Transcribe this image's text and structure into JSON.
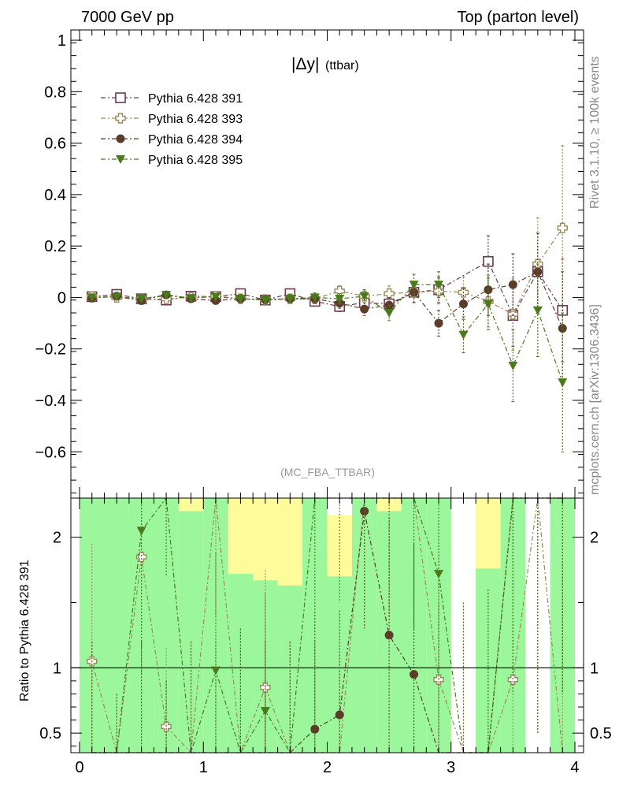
{
  "header": {
    "left": "7000 GeV pp",
    "right": "Top (parton level)"
  },
  "plot_title_main": "|Δy|",
  "plot_title_sub": "(ttbar)",
  "analysis_tag": "(MC_FBA_TTBAR)",
  "side_text_top": "Rivet 3.1.10, ≥ 100k events",
  "side_text_bottom": "mcplots.cern.ch [arXiv:1306.3436]",
  "ratio_ylabel": "Ratio to Pythia 6.428 391",
  "colors": {
    "s391": "#6b3a52",
    "s393": "#9a8a5a",
    "s394": "#5c3d2a",
    "s395": "#4a7a1a",
    "band_green": "#9cf79c",
    "band_yellow": "#fdfb9a"
  },
  "chart_data": [
    {
      "type": "scatter",
      "panel": "main",
      "x": [
        0.1,
        0.3,
        0.5,
        0.7,
        0.9,
        1.1,
        1.3,
        1.5,
        1.7,
        1.9,
        2.1,
        2.3,
        2.5,
        2.7,
        2.9,
        3.1,
        3.3,
        3.5,
        3.7,
        3.9
      ],
      "xlim": [
        -0.07,
        4.07
      ],
      "ylim": [
        -0.78,
        1.04
      ],
      "xticks": [
        0,
        1,
        2,
        3,
        4
      ],
      "yticks": [
        -0.6,
        -0.4,
        -0.2,
        0,
        0.2,
        0.4,
        0.6,
        0.8,
        1
      ],
      "ytick_labels": [
        "−0.6",
        "−0.4",
        "−0.2",
        "0",
        "0.2",
        "0.4",
        "0.6",
        "0.8",
        "1"
      ],
      "legend": "top-left",
      "series": [
        {
          "name": "Pythia 6.428 391",
          "marker": "open-square",
          "values": [
            0.003,
            0.012,
            -0.005,
            -0.01,
            0.005,
            0.003,
            0.015,
            -0.01,
            0.015,
            -0.015,
            -0.035,
            -0.02,
            -0.025,
            0.02,
            0.03,
            null,
            0.14,
            -0.07,
            0.1,
            -0.05
          ],
          "errors": [
            0.008,
            0.01,
            0.01,
            0.012,
            0.012,
            0.012,
            0.013,
            0.014,
            0.015,
            0.018,
            0.02,
            0.025,
            0.03,
            0.04,
            0.05,
            0.06,
            0.1,
            0.12,
            0.15,
            0.2
          ]
        },
        {
          "name": "Pythia 6.428 393",
          "marker": "open-cross",
          "values": [
            0.003,
            0.0,
            -0.008,
            -0.005,
            0.0,
            0.005,
            -0.005,
            -0.008,
            -0.005,
            -0.005,
            0.025,
            0.005,
            0.015,
            0.02,
            0.025,
            0.02,
            -0.015,
            -0.065,
            0.13,
            0.27
          ],
          "errors": [
            0.008,
            0.01,
            0.01,
            0.012,
            0.012,
            0.012,
            0.013,
            0.014,
            0.015,
            0.018,
            0.02,
            0.025,
            0.03,
            0.04,
            0.05,
            0.06,
            0.1,
            0.14,
            0.18,
            0.32
          ]
        },
        {
          "name": "Pythia 6.428 394",
          "marker": "filled-circle",
          "values": [
            -0.003,
            0.005,
            -0.012,
            0.01,
            -0.005,
            -0.012,
            -0.005,
            -0.008,
            -0.005,
            -0.005,
            -0.022,
            -0.045,
            -0.03,
            0.02,
            -0.1,
            -0.025,
            0.03,
            0.05,
            0.1,
            -0.12
          ],
          "errors": [
            0.008,
            0.01,
            0.01,
            0.012,
            0.012,
            0.012,
            0.013,
            0.014,
            0.015,
            0.018,
            0.02,
            0.025,
            0.03,
            0.04,
            0.05,
            0.06,
            0.1,
            0.12,
            0.15,
            0.22
          ]
        },
        {
          "name": "Pythia 6.428 395",
          "marker": "filled-triangle-down",
          "values": [
            0.0,
            0.003,
            -0.005,
            0.01,
            -0.002,
            0.003,
            -0.005,
            -0.01,
            -0.005,
            0.0,
            -0.005,
            0.005,
            -0.06,
            0.05,
            0.05,
            -0.145,
            -0.025,
            -0.265,
            -0.05,
            -0.33
          ],
          "errors": [
            0.008,
            0.01,
            0.01,
            0.012,
            0.012,
            0.012,
            0.013,
            0.014,
            0.015,
            0.018,
            0.02,
            0.025,
            0.03,
            0.04,
            0.05,
            0.07,
            0.1,
            0.14,
            0.18,
            0.27
          ]
        }
      ]
    },
    {
      "type": "scatter",
      "panel": "ratio",
      "ylabel": "Ratio to Pythia 6.428 391",
      "x": [
        0.1,
        0.3,
        0.5,
        0.7,
        0.9,
        1.1,
        1.3,
        1.5,
        1.7,
        1.9,
        2.1,
        2.3,
        2.5,
        2.7,
        2.9,
        3.1,
        3.3,
        3.5,
        3.7,
        3.9
      ],
      "xlim": [
        -0.07,
        4.07
      ],
      "ylim": [
        0.35,
        2.3
      ],
      "xticks": [
        0,
        1,
        2,
        3,
        4
      ],
      "yticks": [
        0.5,
        1,
        2
      ],
      "ytick_labels": [
        "0.5",
        "1",
        "2"
      ],
      "reference_line": 1,
      "band_green_upper": [
        2.3,
        2.3,
        2.3,
        2.3,
        2.2,
        2.3,
        1.72,
        1.67,
        1.63,
        2.3,
        1.7,
        2.3,
        2.2,
        2.3,
        2.3,
        null,
        1.76,
        2.3,
        null,
        2.3
      ],
      "band_yellow_upper": [
        2.3,
        2.17,
        2.3,
        2.3,
        2.3,
        2.3,
        2.3,
        2.3,
        2.3,
        2.3,
        2.17,
        2.3,
        2.3,
        2.3,
        2.3,
        null,
        2.3,
        2.3,
        null,
        2.3
      ],
      "series": [
        {
          "name": "Pythia 6.428 393",
          "marker": "open-cross",
          "values": [
            1.05,
            0.3,
            1.85,
            0.55,
            0.3,
            2.3,
            0.3,
            0.85,
            0.3,
            0.3,
            0.3,
            2.3,
            2.3,
            2.3,
            0.91,
            0.3,
            0.3,
            0.91,
            2.3,
            0.3
          ],
          "errors": [
            0.9,
            0.5,
            0.9,
            0.6,
            0.9,
            0.9,
            1.0,
            0.9,
            0.9,
            0.9,
            0.8,
            0.9,
            0.9,
            1.0,
            1.2,
            1.2,
            1.3,
            1.5,
            1.8,
            1.5
          ]
        },
        {
          "name": "Pythia 6.428 394",
          "marker": "filled-circle",
          "values": [
            0.3,
            0.3,
            0.3,
            0.3,
            0.3,
            0.3,
            0.3,
            0.3,
            0.3,
            0.53,
            0.64,
            2.2,
            1.25,
            0.95,
            0.3,
            0.3,
            0.3,
            2.3,
            2.3,
            2.3
          ],
          "errors": [
            0.9,
            0.5,
            0.9,
            0.6,
            0.9,
            0.9,
            1.0,
            0.9,
            0.9,
            0.9,
            0.8,
            0.9,
            0.9,
            1.0,
            1.2,
            1.2,
            1.3,
            1.5,
            1.8,
            1.5
          ]
        },
        {
          "name": "Pythia 6.428 395",
          "marker": "filled-triangle-down",
          "values": [
            0.3,
            0.3,
            2.05,
            2.3,
            0.3,
            0.98,
            0.3,
            0.67,
            0.3,
            2.3,
            2.3,
            2.3,
            2.3,
            2.3,
            1.72,
            0.3,
            0.3,
            2.3,
            2.3,
            2.3
          ],
          "errors": [
            0.9,
            0.5,
            0.9,
            0.6,
            0.9,
            0.9,
            1.0,
            0.9,
            0.9,
            0.9,
            0.8,
            0.9,
            0.9,
            1.0,
            1.2,
            1.2,
            1.3,
            1.5,
            1.8,
            1.5
          ]
        }
      ]
    }
  ]
}
